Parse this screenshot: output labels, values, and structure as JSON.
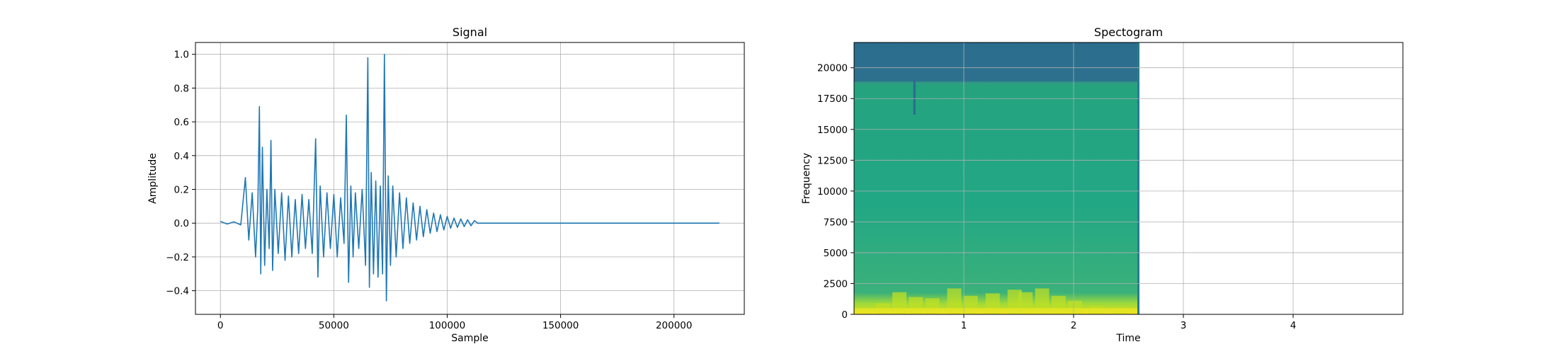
{
  "chart_data": [
    {
      "type": "line",
      "title": "Signal",
      "xlabel": "Sample",
      "ylabel": "Amplitude",
      "xlim": [
        -11000,
        231000
      ],
      "ylim": [
        -0.54,
        1.07
      ],
      "grid": true,
      "x_ticks": [
        0,
        50000,
        100000,
        150000,
        200000
      ],
      "x_tick_labels": [
        "0",
        "50000",
        "100000",
        "150000",
        "200000"
      ],
      "y_ticks": [
        -0.4,
        -0.2,
        0.0,
        0.2,
        0.4,
        0.6,
        0.8,
        1.0
      ],
      "y_tick_labels": [
        "−0.4",
        "−0.2",
        "0.0",
        "0.2",
        "0.4",
        "0.6",
        "0.8",
        "1.0"
      ],
      "color": "#1f77b4",
      "series": [
        {
          "x": [
            0,
            3000,
            6000,
            9000,
            11000,
            12500,
            14000,
            15500,
            16500,
            17200,
            17800,
            18500,
            19500,
            20500,
            21500,
            22300,
            23000,
            24000,
            25500,
            27000,
            28500,
            30000,
            31500,
            33000,
            34500,
            36000,
            37500,
            39000,
            40500,
            42000,
            43000,
            44000,
            45500,
            47000,
            48500,
            50000,
            51500,
            53000,
            54500,
            55500,
            56500,
            57500,
            58500,
            59500,
            61000,
            62500,
            64000,
            65000,
            65700,
            66500,
            67500,
            68500,
            69500,
            70500,
            71500,
            72300,
            73200,
            74000,
            75000,
            76000,
            77500,
            79000,
            80500,
            82000,
            83500,
            85000,
            86500,
            88000,
            89500,
            91000,
            92500,
            94000,
            95500,
            97000,
            98500,
            100000,
            101500,
            103000,
            104500,
            106000,
            107500,
            109000,
            110500,
            112000,
            113500,
            115000,
            130000,
            160000,
            190000,
            220000
          ],
          "y": [
            0.01,
            -0.005,
            0.008,
            -0.01,
            0.27,
            -0.1,
            0.18,
            -0.2,
            0.1,
            0.69,
            -0.3,
            0.45,
            -0.25,
            0.2,
            -0.15,
            0.49,
            -0.28,
            0.2,
            -0.18,
            0.18,
            -0.22,
            0.16,
            -0.2,
            0.14,
            -0.18,
            0.17,
            -0.15,
            0.14,
            -0.18,
            0.5,
            -0.32,
            0.22,
            -0.2,
            0.18,
            -0.15,
            0.17,
            -0.2,
            0.15,
            -0.12,
            0.64,
            -0.35,
            0.22,
            -0.2,
            0.18,
            -0.15,
            0.2,
            -0.25,
            0.98,
            -0.38,
            0.3,
            -0.3,
            0.25,
            -0.32,
            0.22,
            -0.3,
            1.0,
            -0.46,
            0.28,
            -0.25,
            0.22,
            -0.2,
            0.18,
            -0.15,
            0.15,
            -0.12,
            0.12,
            -0.1,
            0.1,
            -0.08,
            0.08,
            -0.06,
            0.06,
            -0.05,
            0.05,
            -0.04,
            0.04,
            -0.03,
            0.03,
            -0.025,
            0.025,
            -0.02,
            0.02,
            -0.015,
            0.015,
            0.0,
            0.0,
            0.0,
            0.0,
            0.0,
            0.0
          ]
        }
      ]
    },
    {
      "type": "heatmap",
      "title": "Spectogram",
      "xlabel": "Time",
      "ylabel": "Frequency",
      "xlim": [
        0,
        5.0
      ],
      "ylim": [
        0,
        22050
      ],
      "grid": true,
      "x_ticks": [
        1,
        2,
        3,
        4
      ],
      "x_tick_labels": [
        "1",
        "2",
        "3",
        "4"
      ],
      "y_ticks": [
        0,
        2500,
        5000,
        7500,
        10000,
        12500,
        15000,
        17500,
        20000
      ],
      "y_tick_labels": [
        "0",
        "2500",
        "5000",
        "7500",
        "10000",
        "12500",
        "15000",
        "17500",
        "20000"
      ],
      "data_extent_time": 2.6,
      "colormap": "viridis",
      "colors": {
        "high_band": "#2e6b8e",
        "body": "#22a884",
        "low_freq": "#bddf26",
        "peak": "#fde725"
      },
      "bands": [
        {
          "from_freq": 18700,
          "to_freq": 22050,
          "level": "low"
        },
        {
          "from_freq": 1500,
          "to_freq": 18700,
          "level": "mid"
        },
        {
          "from_freq": 0,
          "to_freq": 1500,
          "level": "high"
        }
      ]
    }
  ]
}
